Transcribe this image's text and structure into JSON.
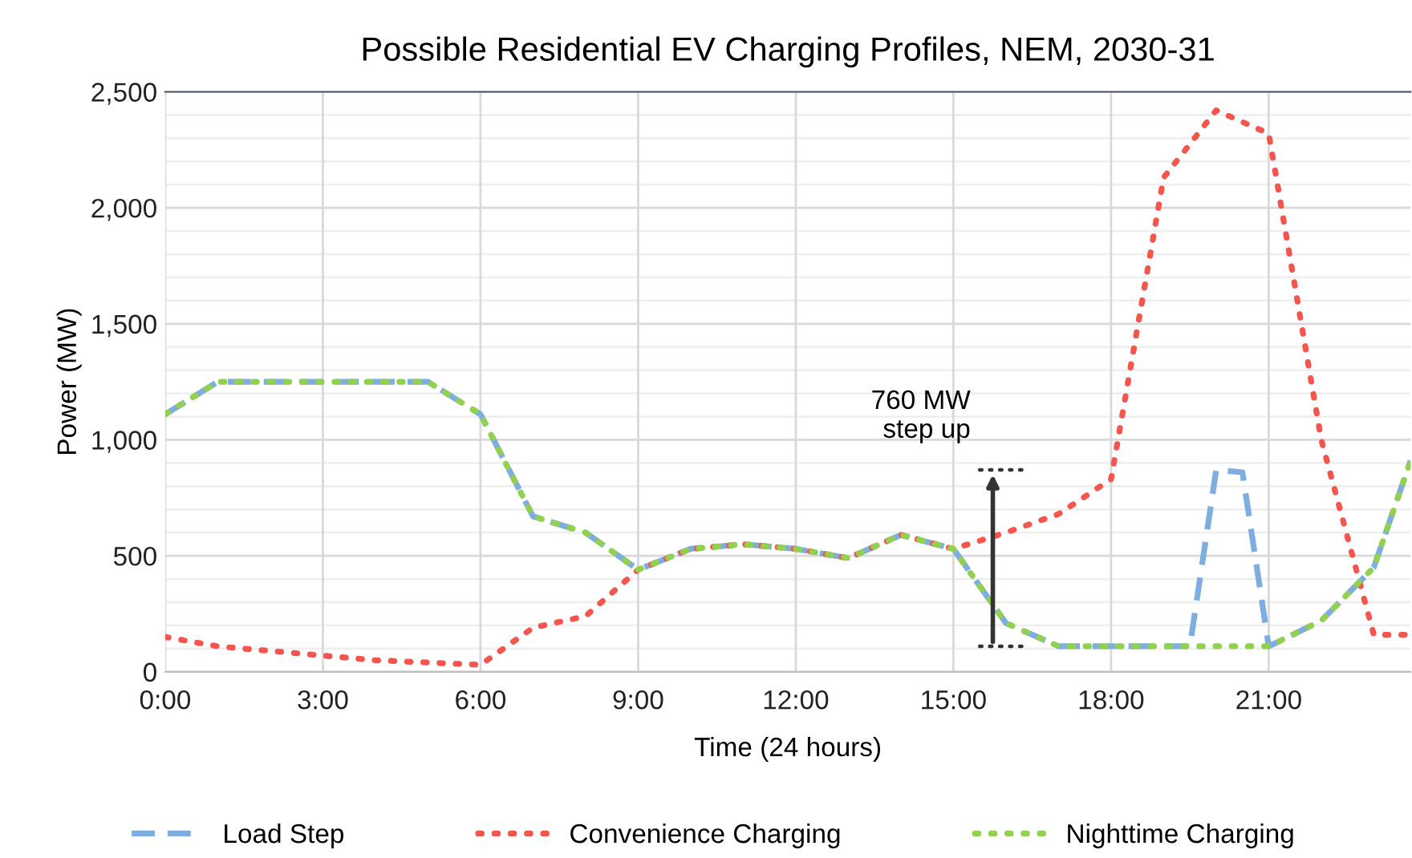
{
  "chart_data": {
    "type": "line",
    "title": "Possible Residential EV Charging Profiles, NEM, 2030-31",
    "xlabel": "Time (24 hours)",
    "ylabel": "Power (MW)",
    "xlim": [
      0,
      23.7
    ],
    "xticks": [
      {
        "value": 0,
        "label": "0:00"
      },
      {
        "value": 3,
        "label": "3:00"
      },
      {
        "value": 6,
        "label": "6:00"
      },
      {
        "value": 9,
        "label": "9:00"
      },
      {
        "value": 12,
        "label": "12:00"
      },
      {
        "value": 15,
        "label": "15:00"
      },
      {
        "value": 18,
        "label": "18:00"
      },
      {
        "value": 21,
        "label": "21:00"
      }
    ],
    "ylim": [
      0,
      2500
    ],
    "yticks": [
      0,
      {
        "value": 100,
        "label": null
      },
      {
        "value": 200,
        "label": null
      },
      {
        "value": 300,
        "label": null
      },
      {
        "value": 400,
        "label": null
      },
      500,
      {
        "value": 600,
        "label": null
      },
      {
        "value": 700,
        "label": null
      },
      {
        "value": 800,
        "label": null
      },
      {
        "value": 900,
        "label": null
      },
      {
        "value": 1000,
        "label": "1,000"
      },
      {
        "value": 1100,
        "label": null
      },
      {
        "value": 1200,
        "label": null
      },
      {
        "value": 1300,
        "label": null
      },
      {
        "value": 1400,
        "label": null
      },
      {
        "value": 1500,
        "label": "1,500"
      },
      {
        "value": 1600,
        "label": null
      },
      {
        "value": 1700,
        "label": null
      },
      {
        "value": 1800,
        "label": null
      },
      {
        "value": 1900,
        "label": null
      },
      {
        "value": 2000,
        "label": "2,000"
      },
      {
        "value": 2100,
        "label": null
      },
      {
        "value": 2200,
        "label": null
      },
      {
        "value": 2300,
        "label": null
      },
      {
        "value": 2400,
        "label": null
      },
      {
        "value": 2500,
        "label": "2,500"
      }
    ],
    "grid": true,
    "legend": "bottom",
    "marker": "none",
    "series": [
      {
        "name": "Load Step",
        "color": "#7eaee0",
        "line_style": "dashed",
        "x": [
          0,
          1,
          2,
          3,
          4,
          5,
          6,
          7,
          8,
          9,
          10,
          11,
          12,
          13,
          14,
          15,
          16,
          17,
          18,
          19,
          19.5,
          20,
          20.5,
          21,
          22,
          23,
          23.7
        ],
        "values": [
          1110,
          1250,
          1250,
          1250,
          1250,
          1250,
          1110,
          670,
          600,
          440,
          530,
          550,
          530,
          490,
          590,
          530,
          210,
          110,
          110,
          110,
          110,
          870,
          860,
          110,
          220,
          450,
          910
        ]
      },
      {
        "name": "Convenience Charging",
        "color": "#f4564e",
        "line_style": "dotted",
        "x": [
          0,
          1,
          2,
          3,
          4,
          5,
          6,
          7,
          8,
          9,
          10,
          11,
          12,
          13,
          14,
          15,
          16,
          17,
          18,
          19,
          20,
          21,
          22,
          23,
          23.7
        ],
        "values": [
          150,
          110,
          90,
          70,
          50,
          40,
          30,
          190,
          240,
          440,
          530,
          550,
          530,
          490,
          590,
          530,
          600,
          680,
          830,
          2130,
          2420,
          2320,
          1000,
          160,
          160
        ]
      },
      {
        "name": "Nighttime Charging",
        "color": "#92d050",
        "line_style": "dotted",
        "x": [
          0,
          1,
          2,
          3,
          4,
          5,
          6,
          7,
          8,
          9,
          10,
          11,
          12,
          13,
          14,
          15,
          16,
          17,
          18,
          19,
          20,
          21,
          22,
          23,
          23.7
        ],
        "values": [
          1110,
          1250,
          1250,
          1250,
          1250,
          1250,
          1110,
          670,
          600,
          440,
          530,
          550,
          530,
          490,
          590,
          530,
          210,
          110,
          110,
          110,
          110,
          110,
          220,
          450,
          910
        ]
      },
      {
        "color": "#333333",
        "line_style": "dotted",
        "x": [
          15.5,
          16.3
        ],
        "values": [
          870,
          870
        ]
      },
      {
        "color": "#333333",
        "line_style": "dotted",
        "x": [
          15.5,
          16.3
        ],
        "values": [
          110,
          110
        ]
      }
    ],
    "annotations": [
      {
        "text": "760 MW\nstep up",
        "x": 15.75,
        "y": 870
      }
    ]
  }
}
